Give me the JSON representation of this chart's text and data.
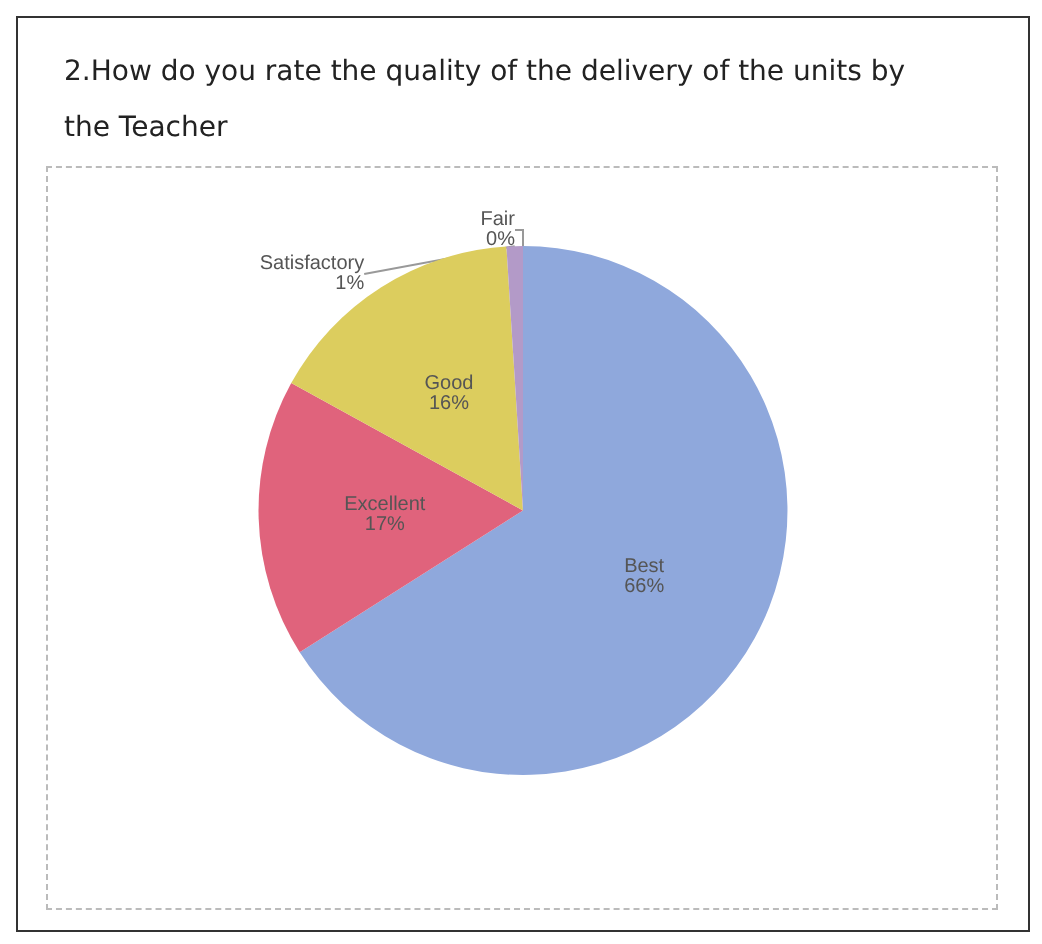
{
  "chart_data": {
    "type": "pie",
    "title": "2.How do you rate the quality of the delivery of the units by the Teacher",
    "categories": [
      "Fair",
      "Best",
      "Excellent",
      "Good",
      "Satisfactory"
    ],
    "values": [
      0,
      66,
      17,
      16,
      1
    ],
    "colors": [
      "#b9a3c9",
      "#8fa8dc",
      "#e0637c",
      "#dccd5e",
      "#b39ac8"
    ],
    "value_labels": [
      "0%",
      "66%",
      "17%",
      "16%",
      "1%"
    ],
    "legend": false
  }
}
